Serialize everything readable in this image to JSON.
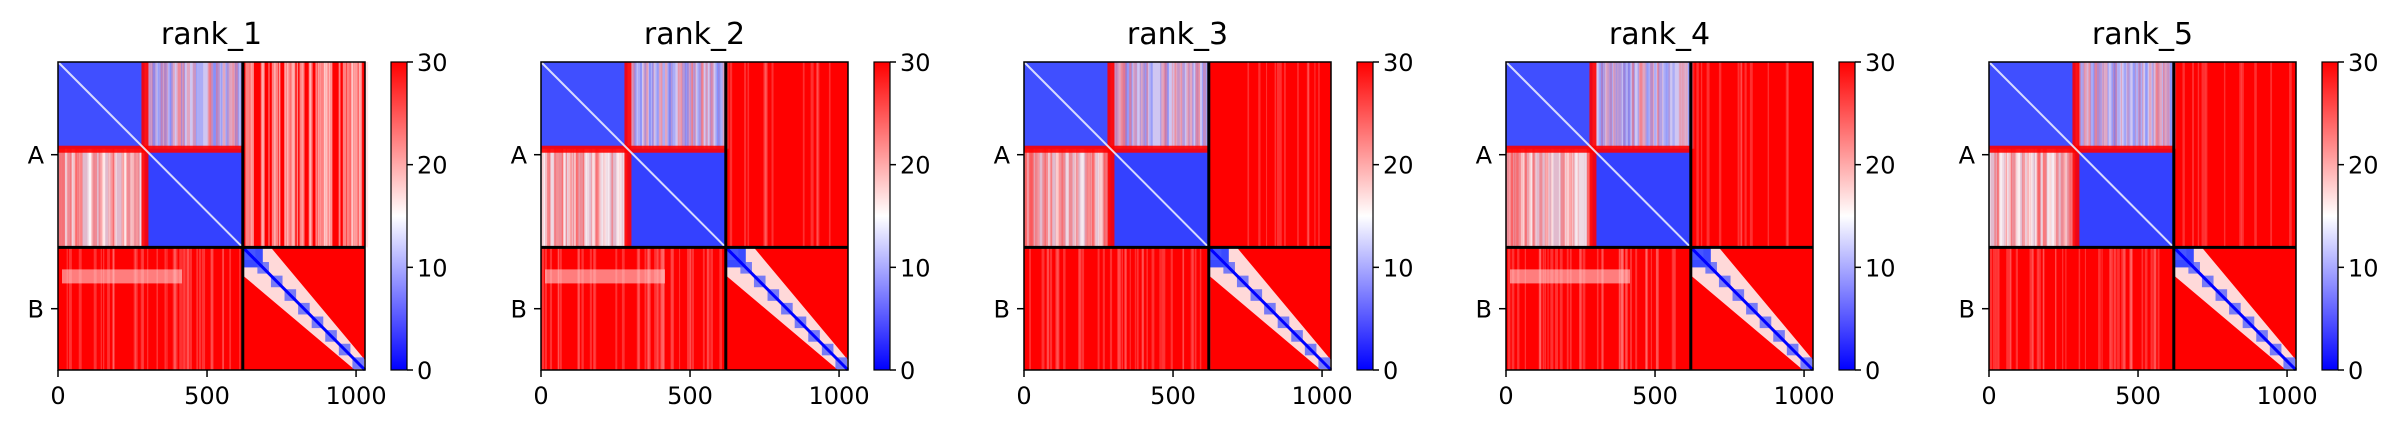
{
  "chart_data": [
    {
      "type": "heatmap",
      "title": "rank_1",
      "x_ticks": [
        "0",
        "500",
        "1000"
      ],
      "x_tick_values": [
        0,
        500,
        1000
      ],
      "y_tick_labels": [
        "A",
        "B"
      ],
      "chain_boundary": 620,
      "xlim": [
        0,
        1030
      ],
      "colorbar": {
        "ticks": [
          "0",
          "10",
          "20",
          "30"
        ],
        "tick_values": [
          0,
          10,
          20,
          30
        ],
        "range": [
          0,
          30
        ],
        "colormap": "bwr"
      },
      "blocks": {
        "AA": "mostly_low",
        "AB": "high_with_low_bands",
        "BA": "high",
        "BB": "low_diagonal"
      }
    },
    {
      "type": "heatmap",
      "title": "rank_2",
      "x_ticks": [
        "0",
        "500",
        "1000"
      ],
      "x_tick_values": [
        0,
        500,
        1000
      ],
      "y_tick_labels": [
        "A",
        "B"
      ],
      "chain_boundary": 620,
      "xlim": [
        0,
        1030
      ],
      "colorbar": {
        "ticks": [
          "0",
          "10",
          "20",
          "30"
        ],
        "tick_values": [
          0,
          10,
          20,
          30
        ],
        "range": [
          0,
          30
        ],
        "colormap": "bwr"
      },
      "blocks": {
        "AA": "mostly_low",
        "AB": "high",
        "BA": "high",
        "BB": "low_diagonal"
      }
    },
    {
      "type": "heatmap",
      "title": "rank_3",
      "x_ticks": [
        "0",
        "500",
        "1000"
      ],
      "x_tick_values": [
        0,
        500,
        1000
      ],
      "y_tick_labels": [
        "A",
        "B"
      ],
      "chain_boundary": 620,
      "xlim": [
        0,
        1030
      ],
      "colorbar": {
        "ticks": [
          "0",
          "10",
          "20",
          "30"
        ],
        "tick_values": [
          0,
          10,
          20,
          30
        ],
        "range": [
          0,
          30
        ],
        "colormap": "bwr"
      },
      "blocks": {
        "AA": "mostly_low",
        "AB": "high",
        "BA": "high",
        "BB": "low_diagonal"
      }
    },
    {
      "type": "heatmap",
      "title": "rank_4",
      "x_ticks": [
        "0",
        "500",
        "1000"
      ],
      "x_tick_values": [
        0,
        500,
        1000
      ],
      "y_tick_labels": [
        "A",
        "B"
      ],
      "chain_boundary": 620,
      "xlim": [
        0,
        1030
      ],
      "colorbar": {
        "ticks": [
          "0",
          "10",
          "20",
          "30"
        ],
        "tick_values": [
          0,
          10,
          20,
          30
        ],
        "range": [
          0,
          30
        ],
        "colormap": "bwr"
      },
      "blocks": {
        "AA": "mostly_low",
        "AB": "high",
        "BA": "high",
        "BB": "low_diagonal"
      }
    },
    {
      "type": "heatmap",
      "title": "rank_5",
      "x_ticks": [
        "0",
        "500",
        "1000"
      ],
      "x_tick_values": [
        0,
        500,
        1000
      ],
      "y_tick_labels": [
        "A",
        "B"
      ],
      "chain_boundary": 620,
      "xlim": [
        0,
        1030
      ],
      "colorbar": {
        "ticks": [
          "0",
          "10",
          "20",
          "30"
        ],
        "tick_values": [
          0,
          10,
          20,
          30
        ],
        "range": [
          0,
          30
        ],
        "colormap": "bwr"
      },
      "blocks": {
        "AA": "mostly_low",
        "AB": "high",
        "BA": "high",
        "BB": "low_diagonal"
      }
    }
  ],
  "colors": {
    "low": "#0000ff",
    "mid": "#ffffff",
    "high": "#ff0000",
    "divider": "#000000"
  }
}
